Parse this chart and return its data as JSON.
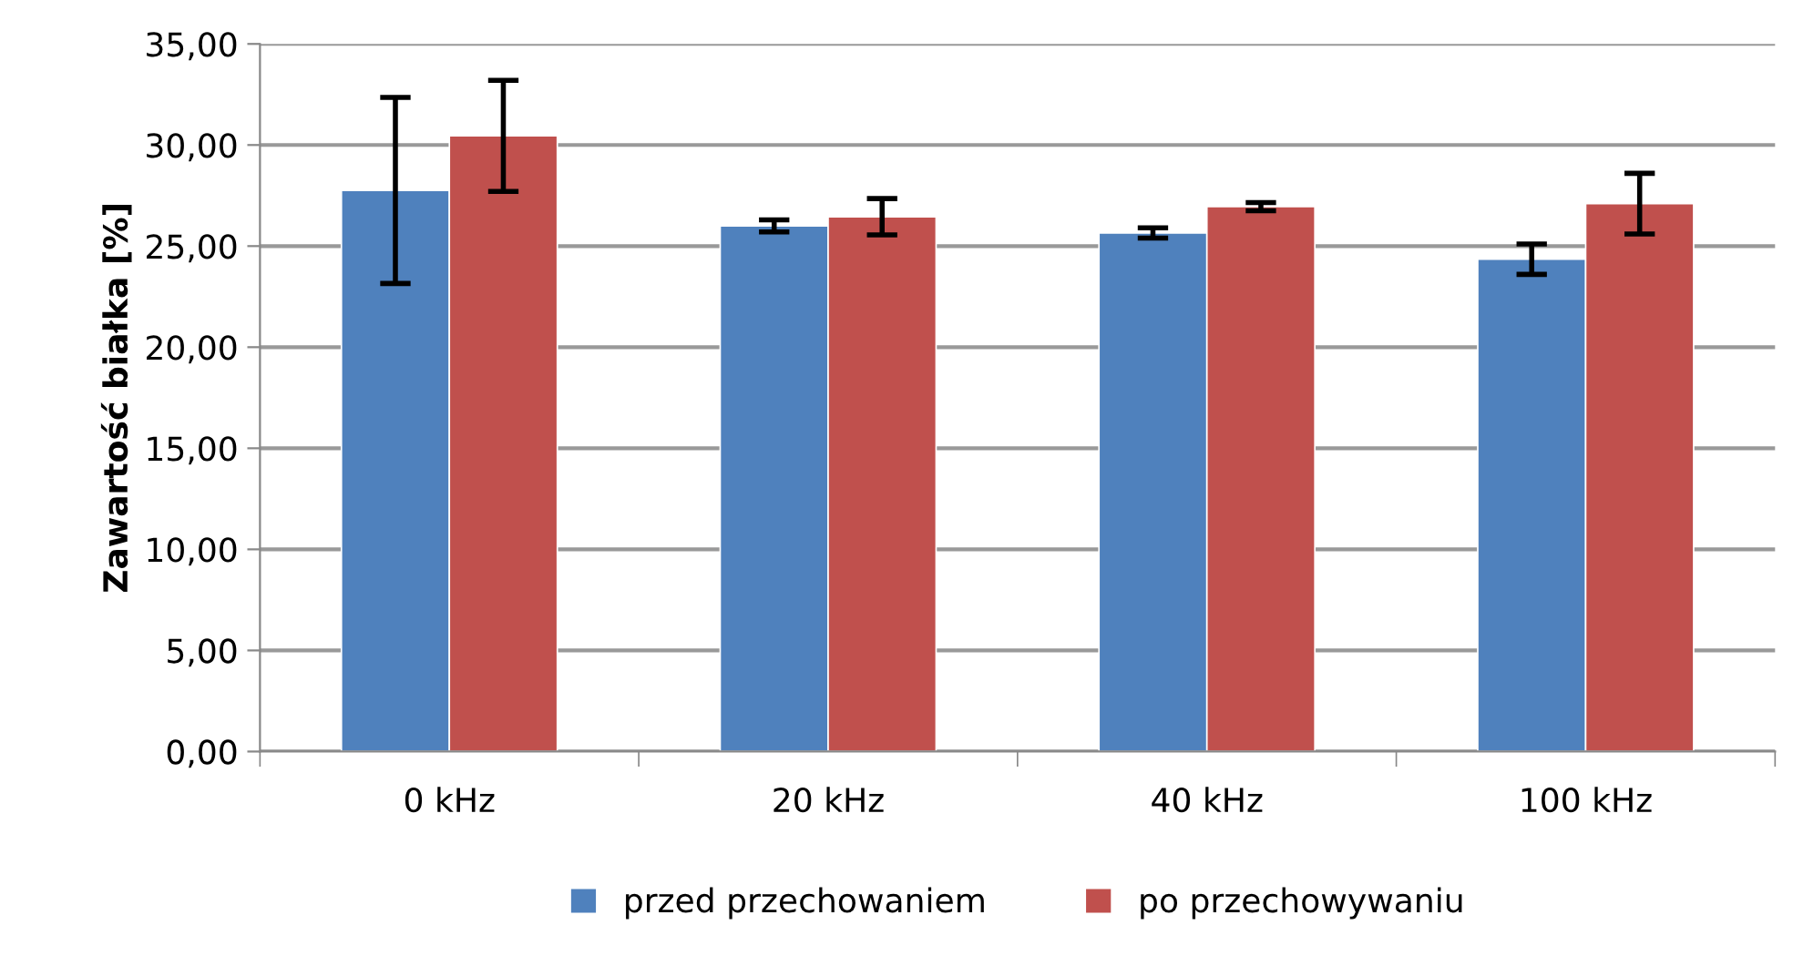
{
  "chart_data": {
    "type": "bar",
    "ylabel": "Zawartość białka [%]",
    "categories": [
      "0 kHz",
      "20 kHz",
      "40 kHz",
      "100 kHz"
    ],
    "series": [
      {
        "name": "przed przechowaniem",
        "color": "#4f81bd",
        "values": [
          27.75,
          26.0,
          25.65,
          24.35
        ],
        "errors": [
          4.6,
          0.3,
          0.25,
          0.75
        ]
      },
      {
        "name": "po przechowywaniu",
        "color": "#c0504d",
        "values": [
          30.45,
          26.45,
          26.95,
          27.1
        ],
        "errors": [
          2.75,
          0.9,
          0.2,
          1.5
        ]
      }
    ],
    "ylim": [
      0,
      35
    ],
    "yticks": [
      {
        "value": 0,
        "label": "0,00"
      },
      {
        "value": 5,
        "label": "5,00"
      },
      {
        "value": 10,
        "label": "10,00"
      },
      {
        "value": 15,
        "label": "15,00"
      },
      {
        "value": 20,
        "label": "20,00"
      },
      {
        "value": 25,
        "label": "25,00"
      },
      {
        "value": 30,
        "label": "30,00"
      },
      {
        "value": 35,
        "label": "35,00"
      }
    ],
    "grid": "y",
    "legend": "bottom"
  }
}
